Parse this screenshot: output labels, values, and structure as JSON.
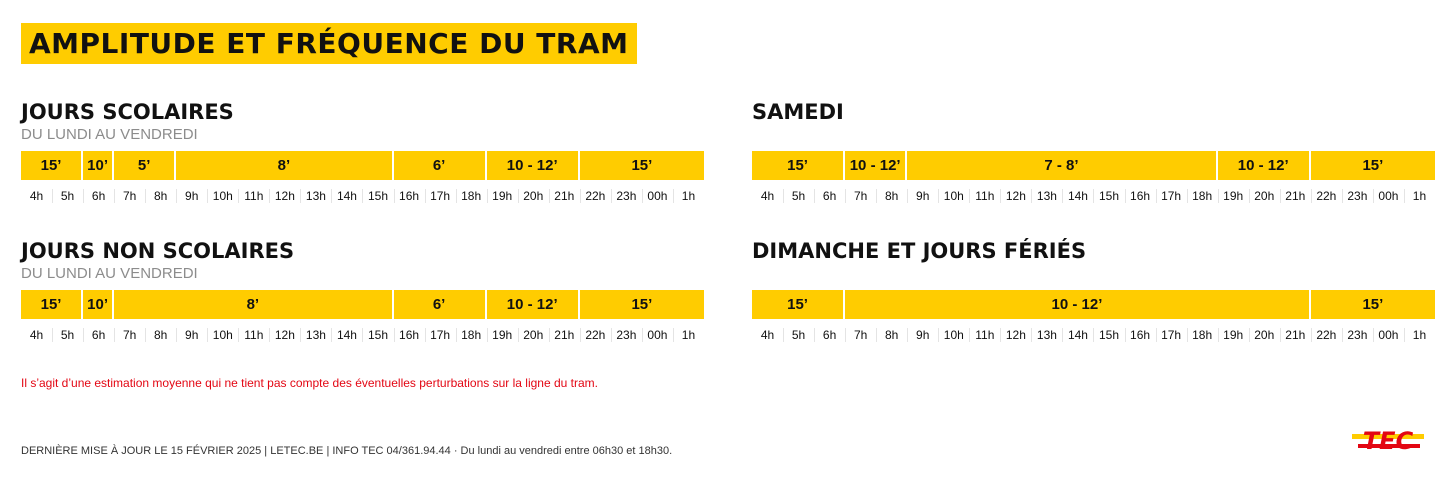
{
  "title": "AMPLITUDE ET FRÉQUENCE DU TRAM",
  "hours": [
    "4h",
    "5h",
    "6h",
    "7h",
    "8h",
    "9h",
    "10h",
    "11h",
    "12h",
    "13h",
    "14h",
    "15h",
    "16h",
    "17h",
    "18h",
    "19h",
    "20h",
    "21h",
    "22h",
    "23h",
    "00h",
    "1h"
  ],
  "sections": [
    {
      "title": "JOURS SCOLAIRES",
      "subtitle": "DU LUNDI AU VENDREDI",
      "segments": [
        {
          "label": "15’",
          "start_hour_index": 0,
          "span_hours": 2
        },
        {
          "label": "10’",
          "start_hour_index": 2,
          "span_hours": 1
        },
        {
          "label": "5’",
          "start_hour_index": 3,
          "span_hours": 2
        },
        {
          "label": "8’",
          "start_hour_index": 5,
          "span_hours": 7
        },
        {
          "label": "6’",
          "start_hour_index": 12,
          "span_hours": 3
        },
        {
          "label": "10 - 12’",
          "start_hour_index": 15,
          "span_hours": 3
        },
        {
          "label": "15’",
          "start_hour_index": 18,
          "span_hours": 4
        }
      ]
    },
    {
      "title": "SAMEDI",
      "subtitle": "",
      "segments": [
        {
          "label": "15’",
          "start_hour_index": 0,
          "span_hours": 3
        },
        {
          "label": "10 - 12’",
          "start_hour_index": 3,
          "span_hours": 2
        },
        {
          "label": "7 - 8’",
          "start_hour_index": 5,
          "span_hours": 10
        },
        {
          "label": "10 - 12’",
          "start_hour_index": 15,
          "span_hours": 3
        },
        {
          "label": "15’",
          "start_hour_index": 18,
          "span_hours": 4
        }
      ]
    },
    {
      "title": "JOURS NON SCOLAIRES",
      "subtitle": "DU LUNDI AU VENDREDI",
      "segments": [
        {
          "label": "15’",
          "start_hour_index": 0,
          "span_hours": 2
        },
        {
          "label": "10’",
          "start_hour_index": 2,
          "span_hours": 1
        },
        {
          "label": "8’",
          "start_hour_index": 3,
          "span_hours": 9
        },
        {
          "label": "6’",
          "start_hour_index": 12,
          "span_hours": 3
        },
        {
          "label": "10 - 12’",
          "start_hour_index": 15,
          "span_hours": 3
        },
        {
          "label": "15’",
          "start_hour_index": 18,
          "span_hours": 4
        }
      ]
    },
    {
      "title": "DIMANCHE ET JOURS FÉRIÉS",
      "subtitle": "",
      "segments": [
        {
          "label": "15’",
          "start_hour_index": 0,
          "span_hours": 3
        },
        {
          "label": "10 - 12’",
          "start_hour_index": 3,
          "span_hours": 15
        },
        {
          "label": "15’",
          "start_hour_index": 18,
          "span_hours": 4
        }
      ]
    }
  ],
  "note": "Il s’agit d’une estimation moyenne qui ne tient pas compte des éventuelles perturbations sur la ligne du tram.",
  "footer": "DERNIÈRE MISE À JOUR LE 15 FÉVRIER 2025  |  LETEC.BE  |  INFO TEC 04/361.94.44  ·  Du lundi au vendredi entre 06h30 et 18h30.",
  "logo": {
    "text": "TEC",
    "colors": {
      "yellow": "#ffcc00",
      "red": "#e30613"
    }
  },
  "colors": {
    "accent": "#ffcc00",
    "note": "#e30613",
    "subtitle": "#8c8c8c"
  }
}
